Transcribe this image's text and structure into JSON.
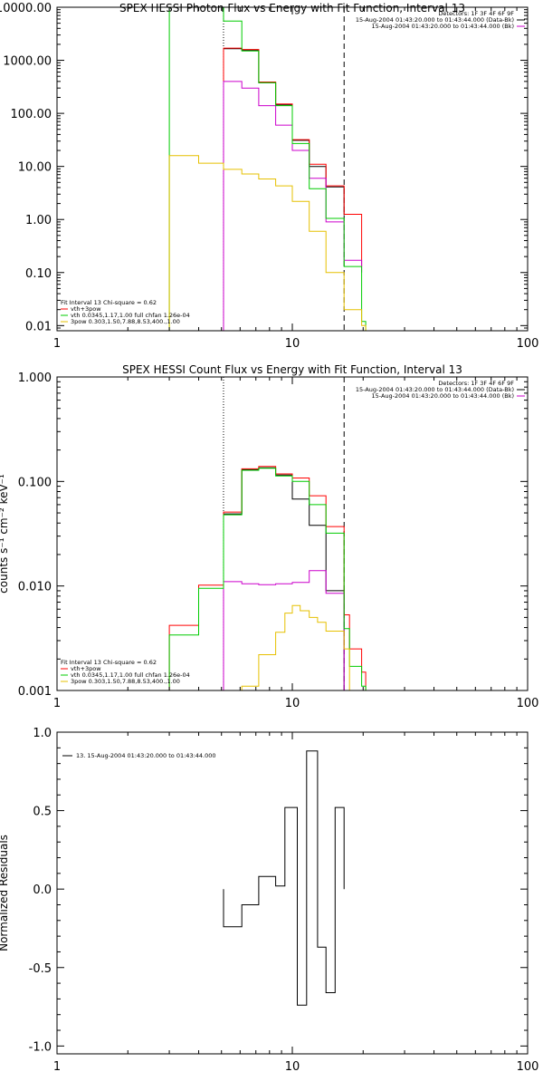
{
  "chart_data": [
    {
      "type": "line",
      "title": "SPEX HESSI Photon Flux vs Energy with Fit Function, Interval 13",
      "xlabel": "",
      "ylabel": "",
      "xscale": "log",
      "yscale": "log",
      "xlim": [
        1,
        100
      ],
      "ylim": [
        0.008,
        10000
      ],
      "xticks": [
        {
          "v": 1,
          "label": "1"
        },
        {
          "v": 10,
          "label": "10"
        },
        {
          "v": 100,
          "label": "100"
        }
      ],
      "yticks": [
        {
          "v": 10000,
          "label": "10000.00"
        },
        {
          "v": 1000,
          "label": "1000.00"
        },
        {
          "v": 100,
          "label": "100.00"
        },
        {
          "v": 10,
          "label": "10.00"
        },
        {
          "v": 1,
          "label": "1.00"
        },
        {
          "v": 0.1,
          "label": "0.10"
        },
        {
          "v": 0.01,
          "label": "0.01"
        }
      ],
      "vlines": [
        {
          "x": 5.1,
          "style": "dotted",
          "color": "#000000"
        },
        {
          "x": 16.6,
          "style": "dashed",
          "color": "#000000"
        }
      ],
      "info": [
        "Detectors: 1F 3F 4F 6F 9F",
        "15-Aug-2004 01:43:20.000 to 01:43:44.000 (Data-Bk)",
        "15-Aug-2004 01:43:20.000 to 01:43:44.000 (Bk)"
      ],
      "info_colors": [
        "",
        "#000000",
        "#cc00cc"
      ],
      "legend": {
        "position": "bottom-left",
        "header": "Fit Interval 13    Chi-square = 0.62",
        "entries": [
          {
            "label": "vth+3pow",
            "color": "#ff0000"
          },
          {
            "label": "vth 0.0345,1.17,1.00  full chfan 1.26e-04",
            "color": "#00cc00"
          },
          {
            "label": "3pow 0.303,1.50,7.88,8.53,400.,1.00",
            "color": "#e6c000"
          }
        ]
      },
      "series": [
        {
          "role": "data",
          "color": "#000000",
          "edges": [
            5.1,
            6.1,
            7.2,
            8.5,
            10.0,
            11.8,
            13.9,
            16.6
          ],
          "values": [
            1650,
            1550,
            380,
            145,
            31,
            10,
            4.1,
            1.2
          ]
        },
        {
          "role": "model",
          "color": "#ff0000",
          "edges": [
            5.1,
            6.1,
            7.2,
            8.5,
            10.0,
            11.8,
            13.9,
            16.6,
            19.7
          ],
          "values": [
            1700,
            1600,
            390,
            150,
            32,
            11,
            4.3,
            1.25,
            0.13
          ]
        },
        {
          "role": "background",
          "color": "#cc00cc",
          "edges": [
            5.1,
            6.1,
            7.2,
            8.5,
            10.0,
            11.8,
            13.9,
            16.6,
            19.7
          ],
          "values": [
            400,
            300,
            140,
            60,
            20,
            6,
            0.9,
            0.17,
            0.1
          ]
        },
        {
          "role": "thermal",
          "color": "#00cc00",
          "edges": [
            3.0,
            5.1,
            6.1,
            7.2,
            8.5,
            10.0,
            11.8,
            13.9,
            16.6,
            19.7,
            20.5
          ],
          "values": [
            50000,
            5500,
            1500,
            380,
            140,
            27,
            3.8,
            1.05,
            0.13,
            0.012
          ]
        },
        {
          "role": "power-law",
          "color": "#e6c000",
          "edges": [
            3.0,
            4.0,
            5.1,
            6.1,
            7.2,
            8.5,
            10.0,
            11.8,
            13.9,
            16.6,
            19.7,
            20.5
          ],
          "values": [
            16,
            11.5,
            8.8,
            7.2,
            5.8,
            4.3,
            2.2,
            0.6,
            0.1,
            0.02,
            0.01
          ]
        }
      ]
    },
    {
      "type": "line",
      "title": "SPEX HESSI Count Flux vs Energy with Fit Function, Interval 13",
      "xlabel": "",
      "ylabel": "counts s⁻¹ cm⁻² keV⁻¹",
      "xscale": "log",
      "yscale": "log",
      "xlim": [
        1,
        100
      ],
      "ylim": [
        0.001,
        1
      ],
      "xticks": [
        {
          "v": 1,
          "label": "1"
        },
        {
          "v": 10,
          "label": "10"
        },
        {
          "v": 100,
          "label": "100"
        }
      ],
      "yticks": [
        {
          "v": 1,
          "label": "1.000"
        },
        {
          "v": 0.1,
          "label": "0.100"
        },
        {
          "v": 0.01,
          "label": "0.010"
        },
        {
          "v": 0.001,
          "label": "0.001"
        }
      ],
      "vlines": [
        {
          "x": 5.1,
          "style": "dotted",
          "color": "#000000"
        },
        {
          "x": 16.6,
          "style": "dashed",
          "color": "#000000"
        }
      ],
      "info": [
        "Detectors: 1F 3F 4F 6F 9F",
        "15-Aug-2004 01:43:20.000 to 01:43:44.000 (Data-Bk)",
        "15-Aug-2004 01:43:20.000 to 01:43:44.000 (Bk)"
      ],
      "info_colors": [
        "",
        "#000000",
        "#cc00cc"
      ],
      "legend": {
        "position": "bottom-left",
        "header": "Fit Interval 13    Chi-square = 0.62",
        "entries": [
          {
            "label": "vth+3pow",
            "color": "#ff0000"
          },
          {
            "label": "vth 0.0345,1.17,1.00  full chfan 1.26e-04",
            "color": "#00cc00"
          },
          {
            "label": "3pow 0.303,1.50,7.88,8.53,400.,1.00",
            "color": "#e6c000"
          }
        ]
      },
      "series": [
        {
          "role": "data",
          "color": "#000000",
          "edges": [
            5.1,
            6.1,
            7.2,
            8.5,
            10.0,
            11.8,
            13.9,
            16.6
          ],
          "values": [
            0.049,
            0.13,
            0.135,
            0.115,
            0.068,
            0.038,
            0.009
          ]
        },
        {
          "role": "model",
          "color": "#ff0000",
          "edges": [
            3.0,
            4.0,
            5.1,
            6.1,
            7.2,
            8.5,
            10.0,
            11.8,
            13.9,
            16.6,
            17.5,
            19.7,
            20.5
          ],
          "values": [
            0.0042,
            0.0102,
            0.051,
            0.132,
            0.139,
            0.118,
            0.108,
            0.073,
            0.037,
            0.0053,
            0.0025,
            0.0015
          ]
        },
        {
          "role": "background",
          "color": "#cc00cc",
          "edges": [
            5.1,
            6.1,
            7.2,
            8.5,
            10.0,
            11.8,
            13.9,
            16.6
          ],
          "values": [
            0.011,
            0.0105,
            0.0103,
            0.0105,
            0.0108,
            0.014,
            0.0085
          ]
        },
        {
          "role": "thermal",
          "color": "#00cc00",
          "edges": [
            3.0,
            4.0,
            5.1,
            6.1,
            7.2,
            8.5,
            10.0,
            11.8,
            13.9,
            16.6,
            17.5,
            19.7,
            20.5
          ],
          "values": [
            0.0034,
            0.0095,
            0.048,
            0.128,
            0.134,
            0.113,
            0.1,
            0.06,
            0.032,
            0.0039,
            0.0017,
            0.0011
          ]
        },
        {
          "role": "power-law",
          "color": "#e6c000",
          "edges": [
            6.1,
            7.2,
            8.5,
            9.3,
            10.0,
            10.8,
            11.8,
            12.8,
            13.9,
            16.6,
            17.5
          ],
          "values": [
            0.0011,
            0.0022,
            0.0036,
            0.0055,
            0.0065,
            0.0058,
            0.005,
            0.0045,
            0.0037,
            0.0025
          ]
        }
      ]
    },
    {
      "type": "line",
      "title": "",
      "xlabel": "",
      "ylabel": "Normalized Residuals",
      "xscale": "log",
      "yscale": "linear",
      "xlim": [
        1,
        100
      ],
      "ylim": [
        -1.05,
        1.0
      ],
      "xticks": [
        {
          "v": 1,
          "label": "1"
        },
        {
          "v": 10,
          "label": "10"
        },
        {
          "v": 100,
          "label": "100"
        }
      ],
      "yticks": [
        {
          "v": 1.0,
          "label": "1.0"
        },
        {
          "v": 0.5,
          "label": "0.5"
        },
        {
          "v": 0.0,
          "label": "0.0"
        },
        {
          "v": -0.5,
          "label": "-0.5"
        },
        {
          "v": -1.0,
          "label": "-1.0"
        }
      ],
      "legend": {
        "position": "top-left",
        "entries": [
          {
            "label": "13. 15-Aug-2004 01:43:20.000 to 01:43:44.000",
            "color": "#000000"
          }
        ]
      },
      "series": [
        {
          "role": "residuals",
          "color": "#000000",
          "edges": [
            5.1,
            6.1,
            7.2,
            8.5,
            9.3,
            10.5,
            11.5,
            12.8,
            13.9,
            15.2,
            16.6
          ],
          "values": [
            -0.24,
            -0.1,
            0.08,
            0.02,
            0.52,
            -0.74,
            0.88,
            -0.37,
            -0.66,
            0.52
          ]
        }
      ]
    }
  ]
}
